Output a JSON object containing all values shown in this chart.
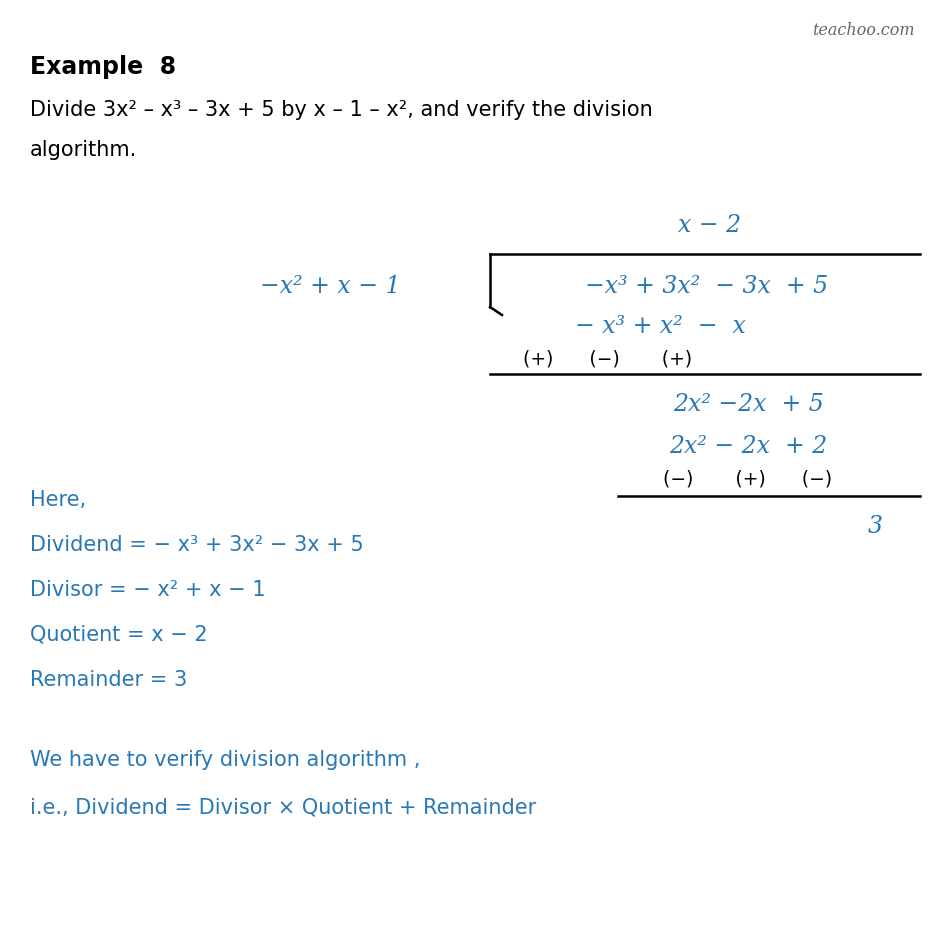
{
  "background_color": "#ffffff",
  "title_color": "#000000",
  "blue_color": "#2878b5",
  "line_color": "#000000",
  "watermark": "teachoo.com",
  "watermark_color": "#666666",
  "example_title": "Example  8",
  "problem_line1": "Divide 3x² – x³ – 3x + 5 by x – 1 – x², and verify the division",
  "problem_line2": "algorithm.",
  "quotient_line": "x − 2",
  "divisor_line": "−x² + x − 1",
  "dividend_line": "−x³ + 3x²  − 3x  + 5",
  "sub1_line": "− x³ + x²  −  x",
  "signs1_line": "(+)      (−)       (+)",
  "remainder1_line": "2x² −2x  + 5",
  "sub2_line": "2x² − 2x  + 2",
  "signs2_line": "(−)       (+)      (−)",
  "final_remainder": "3",
  "here_line": "Here,",
  "dividend_label": "Dividend = − x³ + 3x² − 3x + 5",
  "divisor_label": "Divisor = − x² + x − 1",
  "quotient_label": "Quotient = x − 2",
  "remainder_label": "Remainder = 3",
  "verify_line1": "We have to verify division algorithm ,",
  "verify_line2": "i.e., Dividend = Divisor × Quotient + Remainder"
}
